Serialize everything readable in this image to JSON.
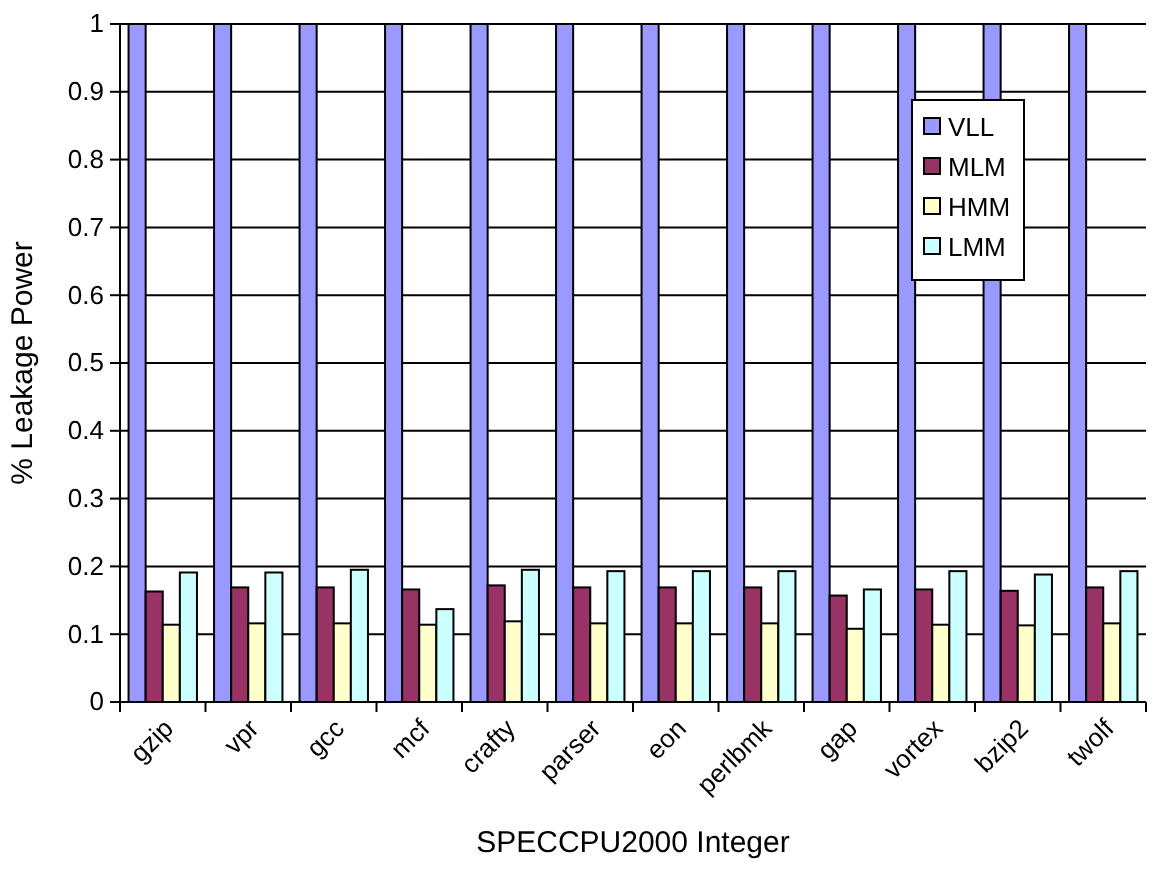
{
  "chart_data": {
    "type": "bar",
    "xlabel": "SPECCPU2000 Integer",
    "ylabel": "% Leakage Power",
    "categories": [
      "gzip",
      "vpr",
      "gcc",
      "mcf",
      "crafty",
      "parser",
      "eon",
      "perlbmk",
      "gap",
      "vortex",
      "bzip2",
      "twolf"
    ],
    "series": [
      {
        "name": "VLL",
        "color": "#9999ff",
        "values": [
          1,
          1,
          1,
          1,
          1,
          1,
          1,
          1,
          1,
          1,
          1,
          1
        ]
      },
      {
        "name": "MLM",
        "color": "#993366",
        "values": [
          0.163,
          0.169,
          0.169,
          0.166,
          0.172,
          0.169,
          0.169,
          0.169,
          0.157,
          0.166,
          0.164,
          0.169
        ]
      },
      {
        "name": "HMM",
        "color": "#ffffcc",
        "values": [
          0.114,
          0.116,
          0.116,
          0.114,
          0.119,
          0.116,
          0.116,
          0.116,
          0.108,
          0.114,
          0.113,
          0.116
        ]
      },
      {
        "name": "LMM",
        "color": "#ccffff",
        "values": [
          0.191,
          0.191,
          0.195,
          0.137,
          0.195,
          0.193,
          0.193,
          0.193,
          0.166,
          0.193,
          0.188,
          0.193
        ]
      }
    ],
    "ylim": [
      0,
      1
    ],
    "yticks": [
      0,
      0.1,
      0.2,
      0.3,
      0.4,
      0.5,
      0.6,
      0.7,
      0.8,
      0.9,
      1
    ],
    "grid": "y",
    "legend": "top right"
  }
}
